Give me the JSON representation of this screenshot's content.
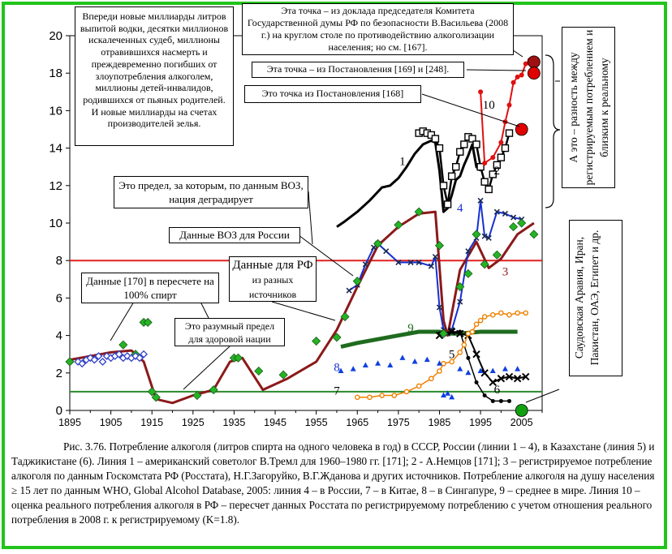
{
  "chart_data": {
    "type": "line",
    "xlim": [
      1895,
      2010
    ],
    "ylim": [
      0,
      20
    ],
    "x_ticks": [
      "1895",
      "1905",
      "1915",
      "1925",
      "1935",
      "1945",
      "1955",
      "1965",
      "1975",
      "1985",
      "1995",
      "2005"
    ],
    "y_ticks": [
      "0",
      "2",
      "4",
      "6",
      "8",
      "10",
      "12",
      "14",
      "16",
      "18",
      "20"
    ],
    "reference_lines": [
      {
        "y": 8,
        "color": "#e02020"
      },
      {
        "y": 1,
        "color": "#2a8a2a"
      }
    ],
    "series": [
      {
        "name": "1",
        "color": "#000000",
        "x": [
          1960,
          1962,
          1965,
          1968,
          1971,
          1973,
          1975,
          1977,
          1979,
          1981,
          1983,
          1984,
          1985,
          1986,
          1987,
          1988,
          1989,
          1990,
          1991,
          1992,
          1993,
          1994,
          1995
        ],
        "y": [
          9.8,
          10.1,
          10.6,
          11.2,
          11.9,
          12.0,
          12.4,
          13.0,
          13.7,
          14.2,
          14.4,
          14.3,
          12.8,
          10.6,
          10.8,
          11.5,
          12.3,
          12.5,
          13.1,
          13.6,
          14.2,
          13.0,
          12.8
        ]
      },
      {
        "name": "2",
        "color": "#000000",
        "x": [
          1980,
          1981,
          1982,
          1983,
          1984,
          1985,
          1986,
          1987,
          1988,
          1989,
          1990,
          1991,
          1992,
          1993,
          1994,
          1995,
          1996,
          1997,
          1998,
          1999,
          2000,
          2001,
          2002
        ],
        "y": [
          14.8,
          14.9,
          14.8,
          14.7,
          14.5,
          14.0,
          12.0,
          11.0,
          12.5,
          13.0,
          13.8,
          14.2,
          14.6,
          14.5,
          14.2,
          13.0,
          12.2,
          11.8,
          12.6,
          13.1,
          13.5,
          14.0,
          14.8
        ]
      },
      {
        "name": "3",
        "color": "#8b1a1a",
        "x": [
          1895,
          1905,
          1910,
          1913,
          1916,
          1920,
          1925,
          1930,
          1934,
          1937,
          1942,
          1948,
          1955,
          1960,
          1965,
          1970,
          1975,
          1980,
          1984,
          1986,
          1987,
          1990,
          1994,
          1997,
          2000,
          2004,
          2008
        ],
        "y": [
          2.7,
          3.1,
          3.2,
          2.6,
          0.6,
          0.4,
          0.8,
          1.1,
          2.6,
          2.8,
          1.1,
          1.7,
          2.6,
          4.3,
          6.6,
          8.8,
          9.8,
          10.5,
          10.6,
          4.8,
          4.0,
          7.5,
          9.0,
          7.6,
          8.1,
          9.4,
          10.0
        ]
      },
      {
        "name": "4",
        "color": "#1530d0",
        "x": [
          1963,
          1965,
          1967,
          1969,
          1970,
          1972,
          1975,
          1978,
          1980,
          1983,
          1984,
          1985,
          1986,
          1987,
          1988,
          1990,
          1992,
          1994,
          1995,
          1996,
          1997,
          1999,
          2001,
          2003,
          2005
        ],
        "y": [
          6.4,
          6.7,
          7.8,
          8.7,
          8.9,
          8.5,
          7.9,
          7.9,
          7.9,
          7.7,
          8.2,
          5.5,
          4.3,
          4.1,
          4.3,
          5.8,
          8.5,
          9.2,
          11.2,
          9.3,
          9.2,
          10.6,
          10.5,
          10.3,
          10.2
        ]
      },
      {
        "name": "5",
        "color": "#000000",
        "x": [
          1985,
          1988,
          1990,
          1992,
          1994,
          1996,
          1998,
          2000,
          2002,
          2004,
          2006
        ],
        "y": [
          4.0,
          4.2,
          4.1,
          4.0,
          3.0,
          2.0,
          1.5,
          1.7,
          1.8,
          1.7,
          1.8
        ]
      },
      {
        "name": "6",
        "color": "#000000",
        "x": [
          1985,
          1988,
          1990,
          1992,
          1994,
          1996,
          1998,
          2000,
          2002
        ],
        "y": [
          4.1,
          4.2,
          4.2,
          2.8,
          1.5,
          0.8,
          0.5,
          0.5,
          0.5
        ]
      },
      {
        "name": "7",
        "color": "#f08000",
        "x": [
          1965,
          1968,
          1971,
          1974,
          1977,
          1980,
          1983,
          1985,
          1986,
          1988,
          1990,
          1991,
          1992,
          1993,
          1994,
          1995,
          1996,
          1998,
          2000,
          2002,
          2004,
          2006
        ],
        "y": [
          0.7,
          0.7,
          0.8,
          0.8,
          1.0,
          1.3,
          1.7,
          2.1,
          2.5,
          2.6,
          3.1,
          3.5,
          4.1,
          4.2,
          4.6,
          4.8,
          5.0,
          5.1,
          5.2,
          5.1,
          5.2,
          5.2
        ]
      },
      {
        "name": "8",
        "color": "#1040e0",
        "x": [
          1961,
          1964,
          1967,
          1970,
          1973,
          1976,
          1979,
          1982,
          1985,
          1986,
          1987,
          1988,
          1990,
          1992,
          1995,
          1998,
          2001,
          2004
        ],
        "y": [
          2.1,
          2.2,
          2.4,
          2.5,
          2.4,
          2.8,
          2.6,
          2.7,
          2.5,
          0.8,
          0.9,
          0.7,
          2.2,
          2.0,
          2.1,
          2.1,
          2.2,
          2.2
        ]
      },
      {
        "name": "9",
        "color": "#1f6b1f",
        "x": [
          1961,
          1965,
          1970,
          1975,
          1980,
          1983,
          1985,
          1988,
          1990,
          1995,
          2000,
          2004
        ],
        "y": [
          3.4,
          3.6,
          3.8,
          4.0,
          4.2,
          4.2,
          4.2,
          4.1,
          4.1,
          4.2,
          4.2,
          4.2
        ]
      },
      {
        "name": "10",
        "color": "#e01010",
        "x": [
          1995,
          1996,
          1998,
          2000,
          2001,
          2002,
          2003,
          2004,
          2005,
          2006,
          2007,
          2008
        ],
        "y": [
          17.0,
          13.2,
          13.5,
          14.3,
          15.4,
          16.3,
          17.5,
          17.8,
          17.9,
          18.5,
          18.7,
          18.2
        ]
      },
      {
        "name": "",
        "color": "#24b424",
        "x": [
          1895,
          1908,
          1911,
          1913,
          1914,
          1915,
          1916,
          1926,
          1930,
          1935,
          1936,
          1941,
          1947,
          1955,
          1960,
          1962,
          1965,
          1970,
          1975,
          1980,
          1985,
          1986,
          1990,
          1992,
          1994,
          1996,
          1999,
          2003,
          2005,
          2008
        ],
        "y": [
          2.6,
          3.5,
          3.0,
          4.7,
          4.7,
          1.0,
          0.7,
          0.8,
          1.1,
          2.8,
          2.8,
          2.1,
          1.9,
          3.7,
          3.9,
          5.0,
          6.9,
          8.9,
          9.9,
          10.6,
          8.8,
          4.1,
          6.6,
          7.3,
          9.4,
          7.8,
          8.3,
          9.8,
          10.0,
          9.4
        ]
      },
      {
        "name": "",
        "color": "#3040c8",
        "x": [
          1897,
          1898,
          1899,
          1900,
          1901,
          1902,
          1903,
          1904,
          1905,
          1906,
          1907,
          1908,
          1909,
          1910,
          1911,
          1912,
          1913
        ],
        "y": [
          2.6,
          2.5,
          2.7,
          2.8,
          2.7,
          2.9,
          2.6,
          2.9,
          2.8,
          2.9,
          3.0,
          2.8,
          2.9,
          2.8,
          2.9,
          2.8,
          3.0
        ]
      }
    ],
    "highlight_points": [
      {
        "x": 2008,
        "y": 18.6,
        "color": "#a01010"
      },
      {
        "x": 2008,
        "y": 18.0,
        "color": "#e00000"
      },
      {
        "x": 2005,
        "y": 15.0,
        "color": "#e00000"
      },
      {
        "x": 2005,
        "y": 0.0,
        "color": "#10a010"
      }
    ],
    "line_labels": [
      {
        "text": "1",
        "x": 1976,
        "y": 13.1,
        "color": "#000000"
      },
      {
        "text": "2",
        "x": 1999,
        "y": 12.6,
        "color": "#000000"
      },
      {
        "text": "3",
        "x": 2001,
        "y": 7.2,
        "color": "#8b1a1a"
      },
      {
        "text": "4",
        "x": 1990,
        "y": 10.6,
        "color": "#1530d0"
      },
      {
        "text": "5",
        "x": 1988,
        "y": 2.8,
        "color": "#000000"
      },
      {
        "text": "6",
        "x": 1999,
        "y": 0.9,
        "color": "#000000"
      },
      {
        "text": "7",
        "x": 1960,
        "y": 0.85,
        "color": "#000000"
      },
      {
        "text": "8",
        "x": 1960,
        "y": 2.1,
        "color": "#1530d0"
      },
      {
        "text": "9",
        "x": 1978,
        "y": 4.2,
        "color": "#1f6b1f"
      },
      {
        "text": "10",
        "x": 1997,
        "y": 16.1,
        "color": "#000000"
      }
    ]
  },
  "annotations": {
    "vodka": "Впереди новые миллиарды литров выпитой водки, десятки миллионов искалеченных судеб, миллионы отравившихся насмерть и преждевременно погибших от злоупотребления алкоголем, миллионы детей-инвалидов, родившихся от пьяных родителей. И новые миллиарды на счетах производителей зелья.",
    "vasiliev": "Эта точка – из доклада председателя Комитета Государственной думы РФ по безопасности В.Васильева (2008 г.) на круглом столе по противодействию алкоголизации населения; но см. [167].",
    "resolutions": "Эта точка – из Постановления [169] и [248].",
    "resolution168": "Это точка из Постановления [168]",
    "who_limit": "Это предел, за которым, по данным ВОЗ, нация деградирует",
    "who_russia": "Данные ВОЗ для России",
    "data170": "Данные [170] в пересчете на 100% спирт",
    "rf_sources_main": "Данные для РФ",
    "rf_sources_small": "из разных источников",
    "reasonable": "Это разумный предел для здоровой нации",
    "difference": "А это – разность между регистрируемым потреблением и близким к реальному",
    "countries": "Саудовская Аравия, Иран, Пакистан, ОАЭ, Египет и др."
  },
  "caption": {
    "text": "Рис. 3.76. Потребление алкоголя (литров спирта на одного человека в год)  в СССР, России (линии 1 – 4), в Казахстане (линия 5) и Таджикистане (6). Линия 1 – американский советолог В.Тремл для 1960–1980 гг. [171]; 2 - А.Немцов [171]; 3 – регистрируемое потребление алкоголя по данным Госкомстата РФ (Росстата), Н.Г.Загоруйко, В.Г.Жданова и других источников. Потребление алкоголя на душу населения ≥ 15 лет по  данным WHO, Global  Alcohol Database, 2005: линия 4 – в России, 7 – в Китае, 8 – в Сингапуре, 9 – среднее в мире. Линия 10 – оценка реального потребления алкоголя в РФ – пересчет данных Росстата по регистрируемому потреблению с учетом отношения реального потребления в 2008 г. к регистрируемому (K=1.8)."
  }
}
